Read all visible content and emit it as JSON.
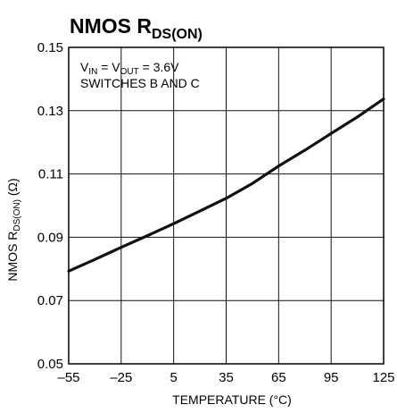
{
  "chart_data": {
    "type": "line",
    "title": "NMOS R",
    "title_sub": "DS(ON)",
    "xlabel": "TEMPERATURE (°C)",
    "ylabel_main": "NMOS R",
    "ylabel_sub": "DS(ON)",
    "ylabel_unit": " (Ω)",
    "xlim": [
      -55,
      125
    ],
    "ylim": [
      0.05,
      0.15
    ],
    "x_ticks": [
      -55,
      -25,
      5,
      35,
      65,
      95,
      125
    ],
    "x_tick_labels": [
      "–55",
      "–25",
      "5",
      "35",
      "65",
      "95",
      "125"
    ],
    "y_ticks": [
      0.05,
      0.07,
      0.09,
      0.11,
      0.13,
      0.15
    ],
    "y_tick_labels": [
      "0.05",
      "0.07",
      "0.09",
      "0.11",
      "0.13",
      "0.15"
    ],
    "grid": true,
    "annotations": {
      "line1": {
        "v_in": "V",
        "in_sub": "IN",
        "eq1": " = V",
        "out_sub": "OUT",
        "eq2": " = 3.6V"
      },
      "line2": "SWITCHES B AND C"
    },
    "series": [
      {
        "x": [
          -55,
          -40,
          -25,
          -10,
          5,
          20,
          35,
          50,
          65,
          80,
          95,
          110,
          125
        ],
        "y": [
          0.0793,
          0.083,
          0.0868,
          0.0905,
          0.0943,
          0.0983,
          0.1023,
          0.107,
          0.1125,
          0.1175,
          0.1228,
          0.128,
          0.1337
        ]
      }
    ],
    "colors": {
      "line": "#111111",
      "grid": "#111111",
      "axis": "#111111"
    }
  }
}
